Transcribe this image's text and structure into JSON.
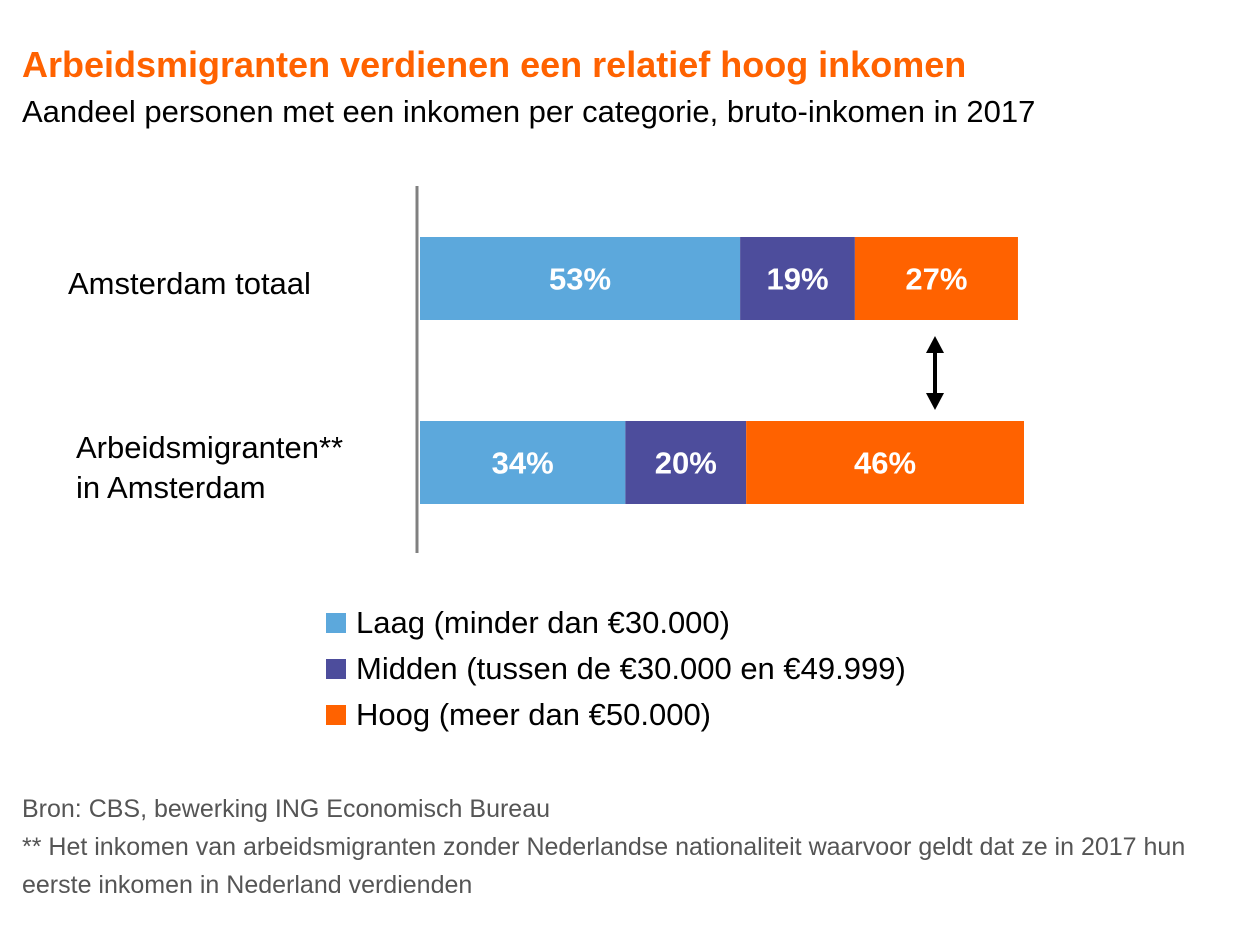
{
  "chart_data": {
    "type": "bar",
    "orientation": "horizontal",
    "stacked": true,
    "title": "Arbeidsmigranten verdienen een relatief hoog inkomen",
    "subtitle": "Aandeel personen met een inkomen per categorie, bruto-inkomen in 2017",
    "categories": [
      "Amsterdam totaal",
      "Arbeidsmigranten** in Amsterdam"
    ],
    "category_lines": [
      [
        "Amsterdam totaal"
      ],
      [
        "Arbeidsmigranten**",
        "in Amsterdam"
      ]
    ],
    "series": [
      {
        "name": "Laag (minder dan €30.000)",
        "values": [
          53,
          34
        ],
        "labels": [
          "53%",
          "34%"
        ],
        "color": "#5ca8dc"
      },
      {
        "name": "Midden (tussen de €30.000 en €49.999)",
        "values": [
          19,
          20
        ],
        "labels": [
          "19%",
          "20%"
        ],
        "color": "#4d4d9c"
      },
      {
        "name": "Hoog (meer dan €50.000)",
        "values": [
          27,
          46
        ],
        "labels": [
          "27%",
          "46%"
        ],
        "color": "#ff6200"
      }
    ],
    "xlim": [
      0,
      100
    ],
    "grid": false,
    "legend_position": "bottom",
    "annotation": "double-headed arrow between the Hoog segments"
  },
  "source_note": {
    "line1": "Bron: CBS, bewerking ING Economisch Bureau",
    "line2": "** Het inkomen van arbeidsmigranten zonder Nederlandse nationaliteit waarvoor geldt dat ze in 2017 hun eerste inkomen in Nederland verdienden"
  }
}
